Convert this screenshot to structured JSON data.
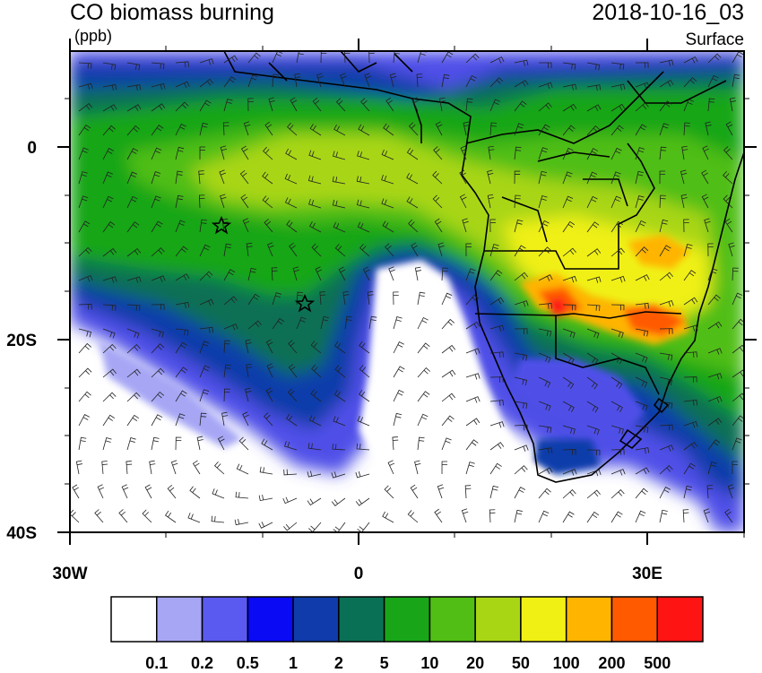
{
  "header": {
    "title": "CO biomass burning",
    "units": "(ppb)",
    "datetime": "2018-10-16_03",
    "level": "Surface"
  },
  "map": {
    "lon_range": [
      -30,
      40
    ],
    "lat_range": [
      -40,
      10
    ],
    "lon_tick_labels": [
      "30W",
      "0",
      "30E"
    ],
    "lat_tick_labels": [
      "0",
      "20S",
      "40S"
    ],
    "markers": [
      {
        "name": "star-marker",
        "lon": -14.5,
        "lat": -8
      },
      {
        "name": "star-marker",
        "lon": -5.7,
        "lat": -16
      }
    ]
  },
  "colorbar": {
    "colors": [
      "#ffffff",
      "#a6a6f5",
      "#5a5af0",
      "#0a0af5",
      "#0f3caa",
      "#0a7055",
      "#18a618",
      "#50be14",
      "#a8d614",
      "#f0f014",
      "#ffb400",
      "#ff5a00",
      "#ff1414"
    ],
    "labels": [
      "0.1",
      "0.2",
      "0.5",
      "1",
      "2",
      "5",
      "10",
      "20",
      "50",
      "100",
      "200",
      "500"
    ]
  }
}
